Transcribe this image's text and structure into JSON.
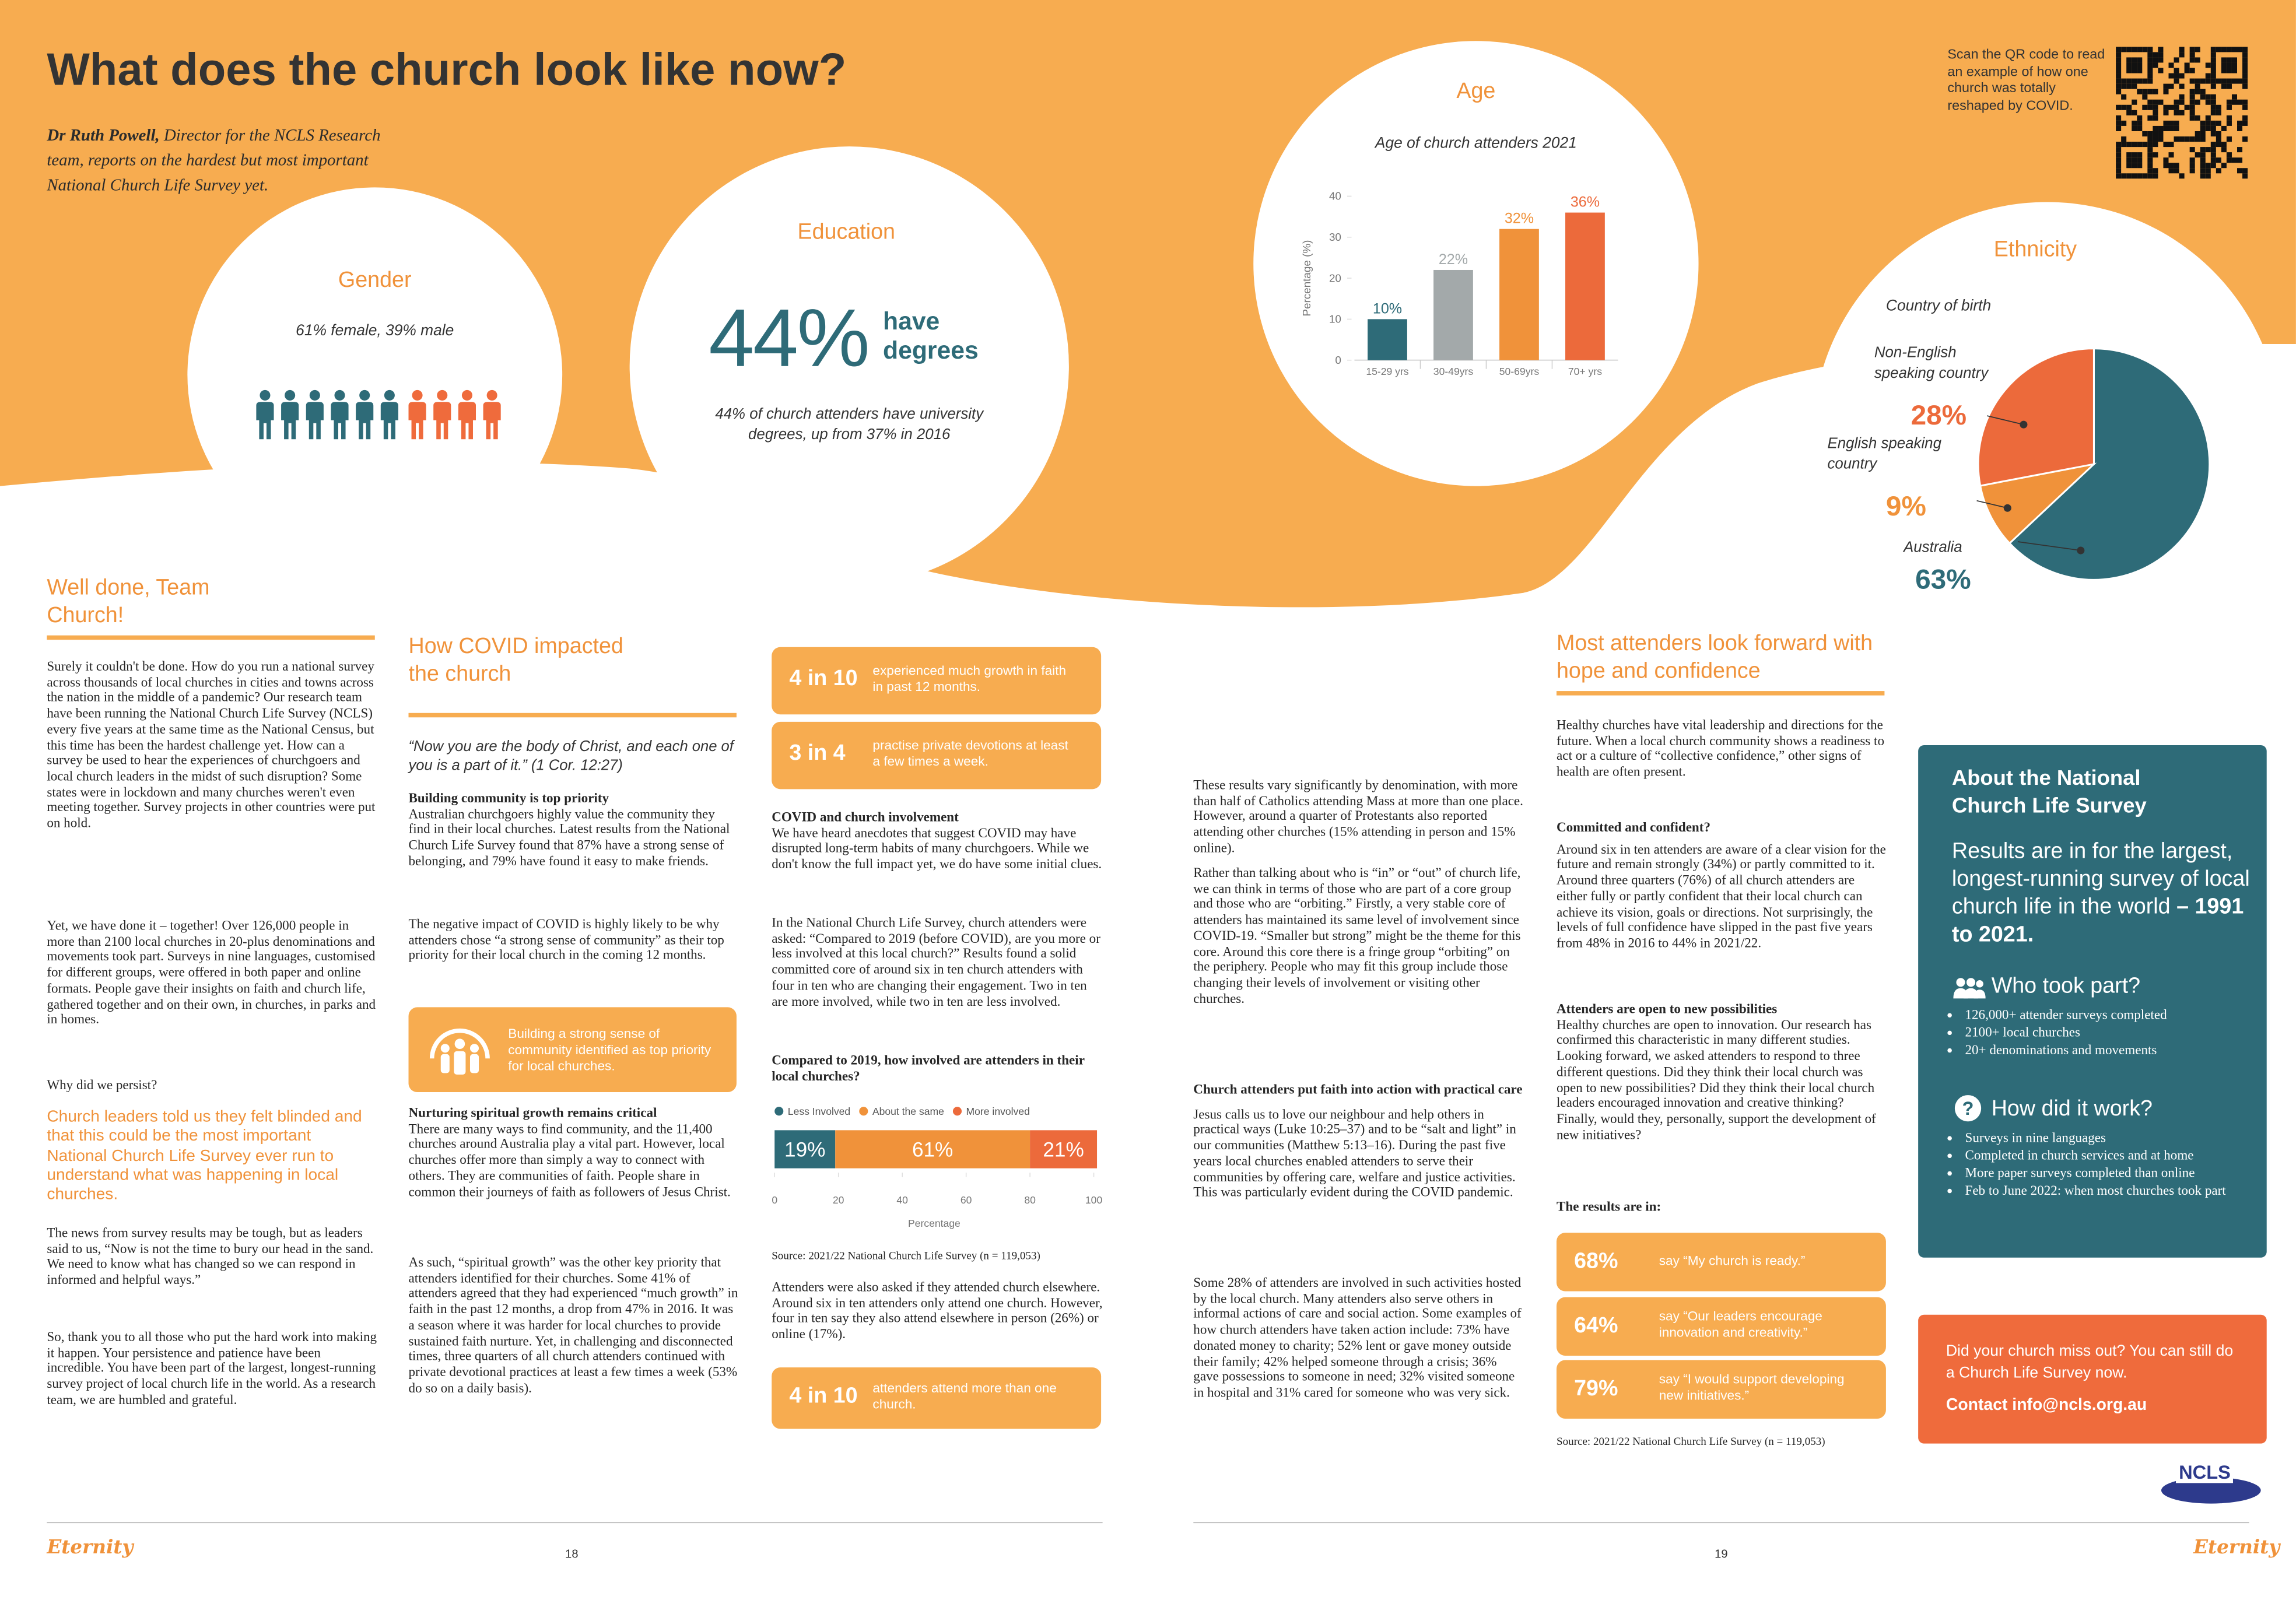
{
  "header": {
    "title": "What does the church look like now?",
    "intro_name": "Dr Ruth Powell,",
    "intro_text": " Director for the NCLS Research team, reports on the hardest but most important National Church Life Survey yet.",
    "qr_text": "Scan the QR code to read an example of how one church was totally reshaped by COVID."
  },
  "gender": {
    "section": "Gender",
    "caption": "61% female, 39% male"
  },
  "education": {
    "section": "Education",
    "stat": "44%",
    "stat_label": "have degrees",
    "caption": "44% of church attenders have university degrees, up from 37% in 2016"
  },
  "chart_data": [
    {
      "type": "bar",
      "section": "Age",
      "title": "Age of church attenders 2021",
      "y_label": "Percentage (%)",
      "categories": [
        "15-29 yrs",
        "30-49yrs",
        "50-69yrs",
        "70+ yrs"
      ],
      "values": [
        10,
        22,
        32,
        36
      ],
      "value_labels": [
        "10%",
        "22%",
        "32%",
        "36%"
      ],
      "colors": [
        "#2e6b78",
        "#a3a9aa",
        "#f0923a",
        "#ec6a3b"
      ],
      "ylim": [
        0,
        40
      ],
      "yticks": [
        0,
        10,
        20,
        30,
        40
      ]
    },
    {
      "type": "pie",
      "section": "Ethnicity",
      "title": "Country of birth",
      "categories": [
        "Australia",
        "English speaking country",
        "Non-English speaking country"
      ],
      "values": [
        63,
        9,
        28
      ],
      "value_labels": [
        "63%",
        "9%",
        "28%"
      ],
      "colors": [
        "#2e6b78",
        "#f0923a",
        "#ec6a3b"
      ]
    },
    {
      "type": "stacked_bar",
      "title": "Compared to 2019, how involved are attenders in their local churches?",
      "x_label": "Percentage",
      "series": [
        {
          "name": "Less Involved",
          "color": "#2e6b78",
          "values": [
            19
          ],
          "value_labels": [
            "19%"
          ]
        },
        {
          "name": "About the same",
          "color": "#f0923a",
          "values": [
            61
          ],
          "value_labels": [
            "61%"
          ]
        },
        {
          "name": "More involved",
          "color": "#ec6a3b",
          "values": [
            21
          ],
          "value_labels": [
            "21%"
          ]
        }
      ],
      "xlim": [
        0,
        100
      ],
      "xticks": [
        0,
        20,
        40,
        60,
        80,
        100
      ],
      "source": "Source: 2021/22 National Church Life Survey (n = 119,053)"
    }
  ],
  "col1": {
    "heading": "Well done, Team Church!",
    "paragraphs": [
      "Surely it couldn't be done. How do you run a national survey across thousands of local churches in cities and towns across the nation in the middle of a pandemic? Our research team have been running the National Church Life Survey (NCLS) every five years at the same time as the National Census, but this time has been the hardest challenge yet. How can a survey be used to hear the experiences of churchgoers and local church leaders in the midst of such disruption? Some states were in lockdown and many churches weren't even meeting together. Survey projects in other countries were put on hold.",
      "Yet, we have done it – together! Over 126,000 people in more than 2100 local churches in 20-plus denominations and movements took part. Surveys in nine languages, customised for different groups, were offered in both paper and online formats. People gave their insights on faith and church life, gathered together and on their own, in churches, in parks and in homes.",
      "Why did we persist?",
      "The news from survey results may be tough, but as leaders said to us, “Now is not the time to bury our head in the sand.  We need to know what has changed so we can respond in informed and helpful ways.”",
      "So, thank you to all those who put the hard work into making it happen. Your persistence and patience have been incredible. You have been part of the largest, longest-running survey project of local church life in the world. As a research team, we are humbled and grateful."
    ],
    "highlight": "Church leaders told us they felt blinded and that this could be the most important National Church Life Survey ever run to understand what was happening in local churches."
  },
  "col2": {
    "heading": "How COVID impacted the church",
    "quote": "“Now you are the body of Christ, and each one of you is a part of it.” (1 Cor. 12:27)",
    "sub1": "Building community is top priority",
    "paragraphs": [
      "Australian churchgoers highly value the community they find in their local churches. Latest results from the National Church Life Survey found that 87% have a strong sense of belonging, and 79% have found it easy to make friends.",
      "The negative impact of COVID is highly likely to be why attenders chose “a strong sense of community” as their top priority for their local church in the coming 12 months.",
      "There are many ways to find community, and the 11,400 churches around Australia play a vital part. However, local churches offer more than simply a way to connect with others. They are communities of faith. People share in common their journeys of faith as followers of Jesus Christ.",
      "As such, “spiritual growth” was the other key priority that attenders identified for their churches. Some 41% of attenders agreed that they had experienced “much growth” in faith in the past 12 months, a drop from 47% in 2016.  It was a season where it was harder for local churches to provide sustained faith nurture. Yet, in challenging and disconnected times, three quarters of all church attenders continued with private devotional practices at least a few times a week (53% do so on a daily basis)."
    ],
    "callout": "Building a strong sense of community identified as top priority for local churches.",
    "sub2": "Nurturing spiritual growth remains critical"
  },
  "col3": {
    "stats": [
      {
        "figure": "4 in 10",
        "text": "experienced much growth in faith in past 12 months."
      },
      {
        "figure": "3 in 4",
        "text": "practise private devotions at least a few times a week."
      },
      {
        "figure": "4 in 10",
        "text": "attenders attend more than one church."
      }
    ],
    "sub1": "COVID and church involvement",
    "paragraphs": [
      "We have heard anecdotes that suggest COVID may have disrupted long-term habits of many churchgoers. While we don't know the full impact yet, we do have some initial clues.",
      "In the National Church Life Survey, church attenders were asked: “Compared to 2019 (before COVID), are you more or less involved at this local church?” Results found a solid committed core of around six in ten church attenders with four in ten who are changing their engagement. Two in ten are more involved, while two in ten are less involved.",
      "Attenders were also asked if they attended church elsewhere. Around six in ten attenders only attend one church. However, four in ten say they also attend elsewhere in person (26%) or online (17%)."
    ]
  },
  "col4": {
    "paragraphs": [
      "These results vary significantly by denomination, with more than half of Catholics attending Mass at more than one place. However, around a quarter of Protestants also reported attending other churches (15% attending in person and 15% online).",
      "Rather than talking about who is “in” or “out” of church life, we can think in terms of those who are part of a core group and those who are “orbiting.” Firstly, a very stable core of attenders has maintained its same level of involvement since COVID-19. “Smaller but strong” might be the theme for this core. Around this core there is a fringe group “orbiting” on the periphery. People who may fit this group include those changing their levels of involvement or visiting other churches.",
      "Jesus calls us to love our neighbour and help others in practical ways (Luke 10:25–37) and to be “salt and light” in our communities (Matthew 5:13–16). During the past five years local churches enabled attenders to serve their communities by offering care, welfare and justice activities. This was particularly evident during the COVID pandemic.",
      "Some 28% of attenders are involved in such activities hosted by the local church. Many attenders also serve others in informal actions of care and social action. Some examples of how church attenders have taken action include: 73% have donated money to charity; 52% lent or gave money outside their family; 42% helped someone through a crisis; 36% gave possessions to someone in need; 32% visited someone in hospital and 31% cared for someone who was very sick."
    ],
    "sub1": "Church attenders put faith into action with practical care"
  },
  "col5": {
    "heading": "Most attenders look forward with hope and confidence",
    "paragraphs": [
      "Healthy churches have vital leadership and directions for the future. When a local church community shows a readiness to act or a culture of “collective confidence,” other signs of health are often present.",
      "Around six in ten attenders are aware of a clear vision for the future and remain strongly (34%) or partly committed to it.  Around three quarters (76%) of all church attenders are either fully or partly confident that their local church can achieve its vision, goals or directions. Not surprisingly, the levels of full confidence have slipped in the past five years from 48% in 2016 to 44% in 2021/22.",
      "Healthy churches are open to innovation. Our research has confirmed this characteristic in many different studies. Looking forward, we asked attenders to respond to three different questions. Did they think their local church was open to new possibilities? Did they think their local church leaders encouraged innovation and creative thinking? Finally, would they, personally, support the development of new initiatives?"
    ],
    "sub1": "Committed and confident?",
    "sub2": "Attenders are open to new possibilities",
    "sub3": "The results are in:",
    "results": [
      {
        "figure": "68%",
        "text": "say “My church is ready.”"
      },
      {
        "figure": "64%",
        "text": "say “Our leaders encourage innovation and creativity.”"
      },
      {
        "figure": "79%",
        "text": "say “I would support developing new initiatives.”"
      }
    ],
    "source": "Source: 2021/22 National Church Life Survey (n = 119,053)"
  },
  "about": {
    "title": "About the National Church Life Survey",
    "lead": "Results are in for the largest, longest-running survey of local church life in the world ",
    "lead_bold": "– 1991 to 2021.",
    "who_title": "Who took part?",
    "who": [
      "126,000+ attender surveys completed",
      "2100+ local churches",
      "20+ denominations and movements"
    ],
    "how_title": "How did it work?",
    "how": [
      "Surveys in nine languages",
      "Completed in church services and at home",
      "More paper surveys completed than online",
      "Feb to June 2022: when most churches took part"
    ]
  },
  "contact": {
    "text": "Did your church miss out? You can still do a Church Life Survey now.",
    "link": "Contact info@ncls.org.au"
  },
  "footer": {
    "logo_left": "Eternity",
    "logo_right": "Eternity",
    "page_left": "18",
    "page_right": "19",
    "ncls_logo": "NCLS"
  }
}
